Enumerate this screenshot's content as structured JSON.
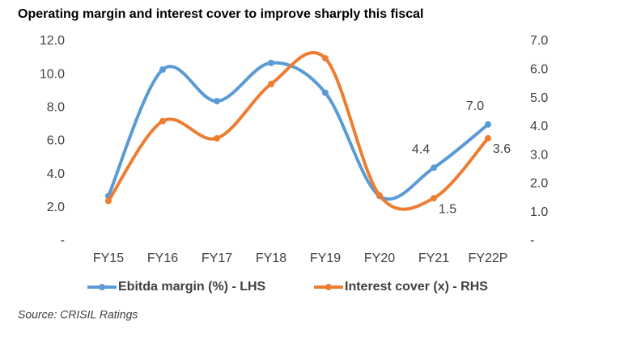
{
  "chart_data": {
    "type": "line",
    "title": "Operating margin and interest cover to improve sharply this fiscal",
    "source": "Source: CRISIL Ratings",
    "categories": [
      "FY15",
      "FY16",
      "FY17",
      "FY18",
      "FY19",
      "FY20",
      "FY21",
      "FY22P"
    ],
    "series": [
      {
        "name": "Ebitda margin (%) - LHS",
        "color": "#5b9bd5",
        "values": [
          2.7,
          10.3,
          8.4,
          10.7,
          8.9,
          2.7,
          4.4,
          7.0
        ],
        "value_labels": [
          null,
          null,
          null,
          null,
          null,
          null,
          "4.4",
          "7.0"
        ]
      },
      {
        "name": "Interest cover (x) - RHS",
        "color": "#ed7d31",
        "axis": "y2",
        "values": [
          1.4,
          4.2,
          3.6,
          5.5,
          6.4,
          1.6,
          1.5,
          3.6
        ],
        "value_labels": [
          null,
          null,
          null,
          null,
          null,
          null,
          "1.5",
          "3.6"
        ]
      }
    ],
    "ylim": [
      0,
      12
    ],
    "yticks": [
      {
        "value": 0,
        "label": "-"
      },
      {
        "value": 2,
        "label": "2.0"
      },
      {
        "value": 4,
        "label": "4.0"
      },
      {
        "value": 6,
        "label": "6.0"
      },
      {
        "value": 8,
        "label": "8.0"
      },
      {
        "value": 10,
        "label": "10.0"
      },
      {
        "value": 12,
        "label": "12.0"
      }
    ],
    "y2lim": [
      0,
      7
    ],
    "y2ticks": [
      {
        "value": 0,
        "label": "-"
      },
      {
        "value": 1,
        "label": "1.0"
      },
      {
        "value": 2,
        "label": "2.0"
      },
      {
        "value": 3,
        "label": "3.0"
      },
      {
        "value": 4,
        "label": "4.0"
      },
      {
        "value": 5,
        "label": "5.0"
      },
      {
        "value": 6,
        "label": "6.0"
      },
      {
        "value": 7,
        "label": "7.0"
      }
    ],
    "grid": false,
    "legend": "bottom"
  }
}
